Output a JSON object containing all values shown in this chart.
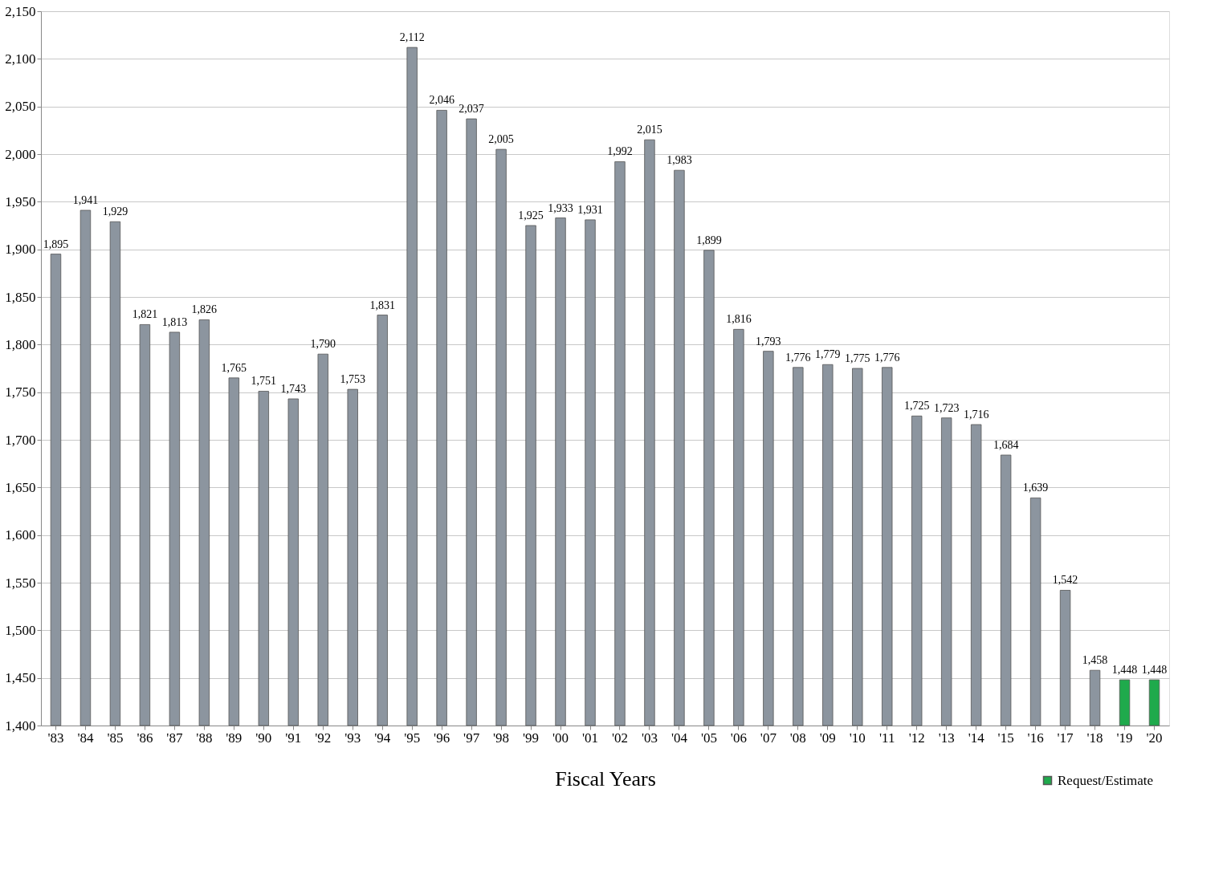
{
  "chart_data": {
    "type": "bar",
    "xlabel": "Fiscal Years",
    "categories": [
      "'83",
      "'84",
      "'85",
      "'86",
      "'87",
      "'88",
      "'89",
      "'90",
      "'91",
      "'92",
      "'93",
      "'94",
      "'95",
      "'96",
      "'97",
      "'98",
      "'99",
      "'00",
      "'01",
      "'02",
      "'03",
      "'04",
      "'05",
      "'06",
      "'07",
      "'08",
      "'09",
      "'10",
      "'11",
      "'12",
      "'13",
      "'14",
      "'15",
      "'16",
      "'17",
      "'18",
      "'19",
      "'20"
    ],
    "series": [
      {
        "color": "#8c959f",
        "values": [
          1895,
          1941,
          1929,
          1821,
          1813,
          1826,
          1765,
          1751,
          1743,
          1790,
          1753,
          1831,
          2112,
          2046,
          2037,
          2005,
          1925,
          1933,
          1931,
          1992,
          2015,
          1983,
          1899,
          1816,
          1793,
          1776,
          1779,
          1775,
          1776,
          1725,
          1723,
          1716,
          1684,
          1639,
          1542,
          1458,
          null,
          null
        ],
        "value_labels": [
          "1,895",
          "1,941",
          "1,929",
          "1,821",
          "1,813",
          "1,826",
          "1,765",
          "1,751",
          "1,743",
          "1,790",
          "1,753",
          "1,831",
          "2,112",
          "2,046",
          "2,037",
          "2,005",
          "1,925",
          "1,933",
          "1,931",
          "1,992",
          "2,015",
          "1,983",
          "1,899",
          "1,816",
          "1,793",
          "1,776",
          "1,779",
          "1,775",
          "1,776",
          "1,725",
          "1,723",
          "1,716",
          "1,684",
          "1,639",
          "1,542",
          "1,458",
          null,
          null
        ]
      },
      {
        "name": "Request/Estimate",
        "color": "#1faa4c",
        "values": [
          null,
          null,
          null,
          null,
          null,
          null,
          null,
          null,
          null,
          null,
          null,
          null,
          null,
          null,
          null,
          null,
          null,
          null,
          null,
          null,
          null,
          null,
          null,
          null,
          null,
          null,
          null,
          null,
          null,
          null,
          null,
          null,
          null,
          null,
          null,
          null,
          1448,
          1448
        ],
        "value_labels": [
          null,
          null,
          null,
          null,
          null,
          null,
          null,
          null,
          null,
          null,
          null,
          null,
          null,
          null,
          null,
          null,
          null,
          null,
          null,
          null,
          null,
          null,
          null,
          null,
          null,
          null,
          null,
          null,
          null,
          null,
          null,
          null,
          null,
          null,
          null,
          null,
          "1,448",
          "1,448"
        ]
      }
    ],
    "ylim": [
      1400,
      2150
    ],
    "yticks": [
      {
        "value": 1400,
        "label": "1,400"
      },
      {
        "value": 1450,
        "label": "1,450"
      },
      {
        "value": 1500,
        "label": "1,500"
      },
      {
        "value": 1550,
        "label": "1,550"
      },
      {
        "value": 1600,
        "label": "1,600"
      },
      {
        "value": 1650,
        "label": "1,650"
      },
      {
        "value": 1700,
        "label": "1,700"
      },
      {
        "value": 1750,
        "label": "1,750"
      },
      {
        "value": 1800,
        "label": "1,800"
      },
      {
        "value": 1850,
        "label": "1,850"
      },
      {
        "value": 1900,
        "label": "1,900"
      },
      {
        "value": 1950,
        "label": "1,950"
      },
      {
        "value": 2000,
        "label": "2,000"
      },
      {
        "value": 2050,
        "label": "2,050"
      },
      {
        "value": 2100,
        "label": "2,100"
      },
      {
        "value": 2150,
        "label": "2,150"
      }
    ],
    "grid": "y",
    "legend": "bottom right"
  }
}
